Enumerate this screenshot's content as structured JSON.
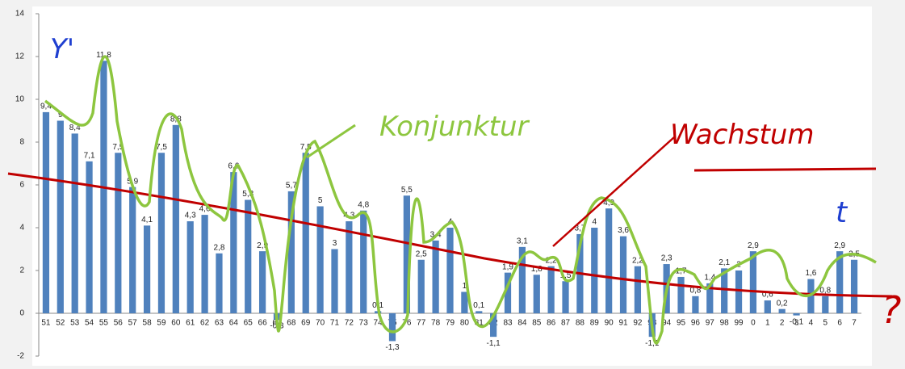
{
  "chart_data": {
    "type": "bar",
    "categories": [
      "51",
      "52",
      "53",
      "54",
      "55",
      "56",
      "57",
      "58",
      "59",
      "60",
      "61",
      "62",
      "63",
      "64",
      "65",
      "66",
      "67",
      "68",
      "69",
      "70",
      "71",
      "72",
      "73",
      "74",
      "75",
      "76",
      "77",
      "78",
      "79",
      "80",
      "81",
      "82",
      "83",
      "84",
      "85",
      "86",
      "87",
      "88",
      "89",
      "90",
      "91",
      "92",
      "93",
      "94",
      "95",
      "96",
      "97",
      "98",
      "99",
      "0",
      "1",
      "2",
      "3",
      "4",
      "5",
      "6",
      "7"
    ],
    "values": [
      9.4,
      9,
      8.4,
      7.1,
      11.8,
      7.5,
      5.9,
      4.1,
      7.5,
      8.8,
      4.3,
      4.6,
      2.8,
      6.6,
      5.3,
      2.9,
      -0.3,
      5.7,
      7.5,
      5,
      3,
      4.3,
      4.8,
      0.1,
      -1.3,
      5.5,
      2.5,
      3.4,
      4,
      1,
      0.1,
      -1.1,
      1.9,
      3.1,
      1.8,
      2.2,
      1.5,
      3.7,
      4,
      4.9,
      3.6,
      2.2,
      -1.1,
      2.3,
      1.7,
      0.8,
      1.4,
      2.1,
      2,
      2.9,
      0.6,
      0.2,
      -0.1,
      1.6,
      0.8,
      2.9,
      2.5
    ],
    "value_labels": [
      "9,4",
      "9",
      "8,4",
      "7,1",
      "11,8",
      "7,5",
      "5,9",
      "4,1",
      "7,5",
      "8,8",
      "4,3",
      "4,6",
      "2,8",
      "6,6",
      "5,3",
      "2,9",
      "-0,3",
      "5,7",
      "7,5",
      "5",
      "3",
      "4,3",
      "4,8",
      "0,1",
      "-1,3",
      "5,5",
      "2,5",
      "3,4",
      "4",
      "1",
      "0,1",
      "-1,1",
      "1,9",
      "3,1",
      "1,8",
      "2,2",
      "1,5",
      "3,7",
      "4",
      "4,9",
      "3,6",
      "2,2",
      "-1,1",
      "2,3",
      "1,7",
      "0,8",
      "1,4",
      "2,1",
      "2",
      "2,9",
      "0,6",
      "0,2",
      "-0,1",
      "1,6",
      "0,8",
      "2,9",
      "2,5"
    ],
    "color": "#4f81bd",
    "ylim": [
      -2,
      14
    ],
    "yticks": [
      -2,
      0,
      2,
      4,
      6,
      8,
      10,
      12,
      14
    ],
    "annotations": [
      "Y'",
      "Konjunktur",
      "Wachstum",
      "t",
      "?"
    ]
  }
}
